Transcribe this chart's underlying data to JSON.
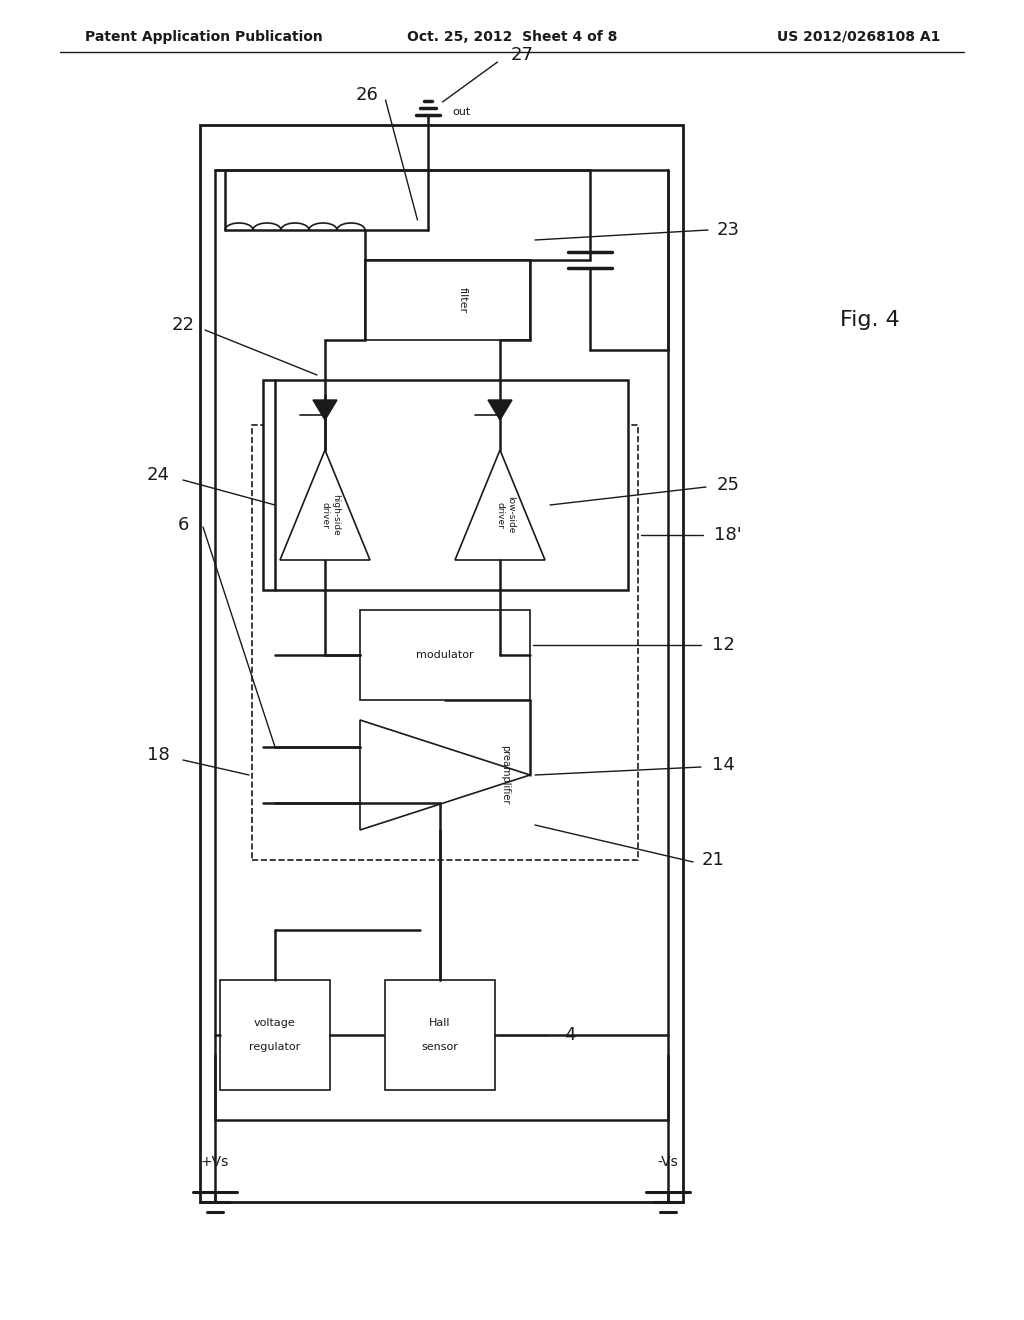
{
  "bg_color": "#ffffff",
  "header_left": "Patent Application Publication",
  "header_center": "Oct. 25, 2012  Sheet 4 of 8",
  "header_right": "US 2012/0268108 A1",
  "fig_label": "Fig. 4",
  "black": "#1a1a1a"
}
